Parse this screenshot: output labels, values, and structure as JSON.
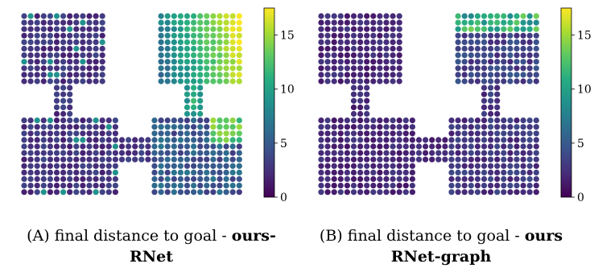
{
  "figure": {
    "panels": [
      {
        "caption": {
          "tag": "(A)",
          "text": "final distance to goal - ",
          "bold1": "ours-",
          "bold2": "RNet"
        }
      },
      {
        "caption": {
          "tag": "(B)",
          "text": "final distance to goal - ",
          "bold1": "ours",
          "bold2": "RNet-graph"
        }
      }
    ]
  },
  "chart_data": [
    {
      "type": "scatter",
      "title": "",
      "colormap": "viridis",
      "colorbar": {
        "min": 0,
        "max": 17.5,
        "ticks": [
          0,
          5,
          10,
          15
        ]
      },
      "layout_description": "grid of points over a maze: left room, right room, connected by corridors",
      "rows_left_room": [
        [
          2,
          3,
          2,
          2,
          3,
          2,
          2,
          2,
          1,
          2,
          1,
          2
        ],
        [
          3,
          5,
          2,
          3,
          2,
          2,
          2,
          3,
          2,
          1,
          2,
          2
        ],
        [
          5,
          2,
          3,
          2,
          2,
          2,
          2,
          2,
          1,
          2,
          2,
          2
        ],
        [
          4,
          3,
          2,
          2,
          2,
          3,
          2,
          2,
          2,
          2,
          2,
          2
        ],
        [
          3,
          2,
          2,
          2,
          2,
          2,
          2,
          2,
          2,
          2,
          2,
          2
        ],
        [
          2,
          3,
          2,
          2,
          2,
          2,
          2,
          2,
          2,
          2,
          2,
          2
        ],
        [
          3,
          2,
          2,
          2,
          2,
          3,
          2,
          2,
          2,
          2,
          2,
          2
        ],
        [
          2,
          2,
          3,
          2,
          2,
          2,
          2,
          2,
          2,
          2,
          2,
          2
        ],
        [
          1,
          2,
          2,
          2,
          2,
          2,
          2,
          2,
          2,
          2,
          2,
          1
        ]
      ],
      "rows_right_room": [
        [
          4,
          5,
          6,
          8,
          9,
          10,
          11,
          12,
          13,
          14,
          15,
          15
        ],
        [
          5,
          6,
          7,
          8,
          10,
          11,
          12,
          13,
          14,
          15,
          16,
          16
        ],
        [
          5,
          6,
          7,
          9,
          10,
          11,
          12,
          13,
          14,
          15,
          16,
          17
        ],
        [
          4,
          6,
          7,
          8,
          10,
          11,
          12,
          13,
          14,
          15,
          16,
          17
        ],
        [
          5,
          6,
          8,
          9,
          10,
          12,
          13,
          14,
          15,
          16,
          17,
          17
        ],
        [
          4,
          5,
          7,
          8,
          10,
          11,
          12,
          14,
          15,
          16,
          17,
          17
        ],
        [
          3,
          5,
          6,
          8,
          9,
          11,
          12,
          13,
          15,
          16,
          17,
          17
        ],
        [
          3,
          4,
          6,
          7,
          9,
          10,
          12,
          13,
          14,
          15,
          16,
          17
        ],
        [
          3,
          4,
          5,
          7,
          8,
          10,
          11,
          12,
          14,
          15,
          16,
          16
        ]
      ]
    },
    {
      "type": "scatter",
      "title": "",
      "colormap": "viridis",
      "colorbar": {
        "min": 0,
        "max": 17.5,
        "ticks": [
          0,
          5,
          10,
          15
        ]
      },
      "layout_description": "grid of points over a maze: left room, right room, connected by corridors"
    }
  ]
}
